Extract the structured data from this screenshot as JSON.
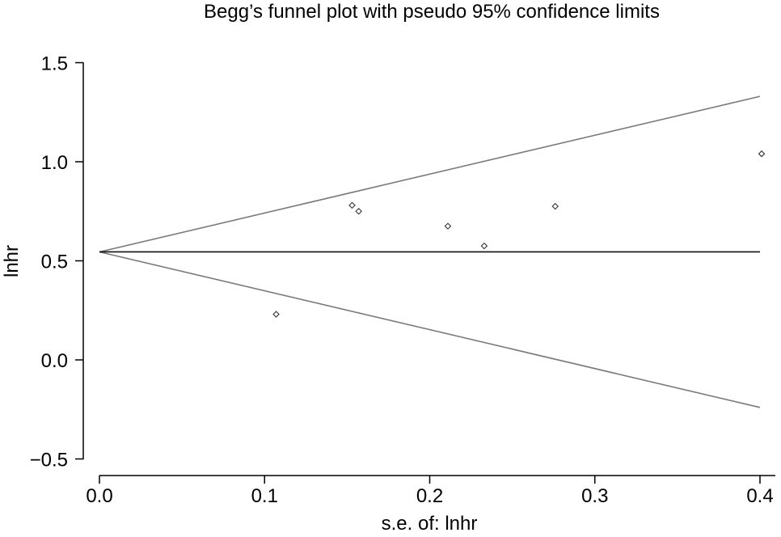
{
  "chart_data": {
    "type": "scatter",
    "title": "Begg’s funnel plot with pseudo 95% confidence limits",
    "xlabel": "s.e. of: lnhr",
    "ylabel": "lnhr",
    "xlim": [
      0,
      0.4
    ],
    "ylim": [
      -0.5,
      1.5
    ],
    "xticks": [
      0.0,
      0.1,
      0.2,
      0.3,
      0.4
    ],
    "xtick_labels": [
      "0.0",
      "0.1",
      "0.2",
      "0.3",
      "0.4"
    ],
    "yticks": [
      -0.5,
      0.0,
      0.5,
      1.0,
      1.5
    ],
    "ytick_labels": [
      "−0.5",
      "0.0",
      "0.5",
      "1.0",
      "1.5"
    ],
    "grid": false,
    "pooled_estimate": 0.545,
    "confidence_limits": {
      "upper": [
        [
          0,
          0.545
        ],
        [
          0.4,
          1.33
        ]
      ],
      "lower": [
        [
          0,
          0.545
        ],
        [
          0.4,
          -0.24
        ]
      ]
    },
    "points": [
      {
        "x": 0.107,
        "y": 0.23
      },
      {
        "x": 0.153,
        "y": 0.78
      },
      {
        "x": 0.157,
        "y": 0.75
      },
      {
        "x": 0.211,
        "y": 0.675
      },
      {
        "x": 0.233,
        "y": 0.575
      },
      {
        "x": 0.276,
        "y": 0.775
      },
      {
        "x": 0.401,
        "y": 1.04
      }
    ],
    "colors": {
      "points": "#333333",
      "limits": "#7a7a7a",
      "pooled_line": "#111111"
    }
  }
}
